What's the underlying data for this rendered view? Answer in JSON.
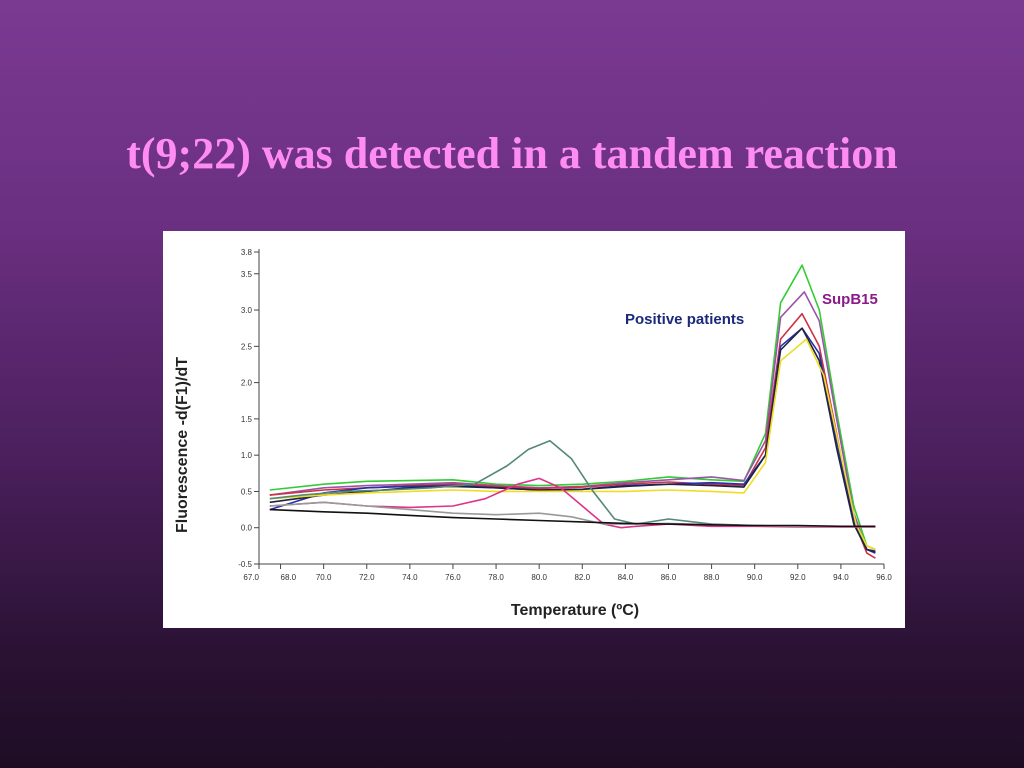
{
  "slide": {
    "title": "t(9;22) was detected in a tandem reaction"
  },
  "chart_data": {
    "type": "line",
    "xlabel": "Temperature (ºC)",
    "ylabel": "Fluorescence -d(F1)/dT",
    "xlim": [
      67.0,
      96.0
    ],
    "ylim": [
      -0.5,
      3.8
    ],
    "x_ticks": [
      "67.0",
      "68.0",
      "70.0",
      "72.0",
      "74.0",
      "76.0",
      "78.0",
      "80.0",
      "82.0",
      "84.0",
      "86.0",
      "88.0",
      "90.0",
      "92.0",
      "94.0",
      "96.0"
    ],
    "y_ticks": [
      "-0.5",
      "0.0",
      "0.5",
      "1.0",
      "1.5",
      "2.0",
      "2.5",
      "3.0",
      "3.5",
      "3.8"
    ],
    "grid": false,
    "annotations": [
      {
        "text": "SupB15",
        "color": "#8b1a8b"
      },
      {
        "text": "Positive patients",
        "color": "#1a2a7a"
      }
    ],
    "series": [
      {
        "color": "#33cc33",
        "x": [
          67.5,
          70,
          72,
          74,
          76,
          78,
          80,
          82,
          84,
          86,
          88,
          89.5,
          90.5,
          91.2,
          92.2,
          93,
          93.8,
          94.6,
          95.2,
          95.6
        ],
        "y": [
          0.52,
          0.6,
          0.64,
          0.65,
          0.66,
          0.6,
          0.58,
          0.6,
          0.64,
          0.7,
          0.66,
          0.64,
          1.3,
          3.1,
          3.62,
          3.0,
          1.6,
          0.3,
          -0.25,
          -0.3
        ]
      },
      {
        "color": "#9955aa",
        "x": [
          67.5,
          70,
          72,
          74,
          76,
          78,
          80,
          82,
          84,
          86,
          88,
          89.5,
          90.5,
          91.2,
          92.3,
          93,
          93.8,
          94.6,
          95.2,
          95.6
        ],
        "y": [
          0.45,
          0.55,
          0.58,
          0.6,
          0.62,
          0.58,
          0.55,
          0.57,
          0.62,
          0.66,
          0.7,
          0.65,
          1.2,
          2.9,
          3.25,
          2.85,
          1.5,
          0.2,
          -0.3,
          -0.32
        ]
      },
      {
        "color": "#cc3344",
        "x": [
          67.5,
          70,
          72,
          74,
          76,
          78,
          80,
          82,
          84,
          86,
          88,
          89.5,
          90.5,
          91.2,
          92.2,
          93,
          93.8,
          94.6,
          95.2,
          95.6
        ],
        "y": [
          0.45,
          0.52,
          0.55,
          0.58,
          0.6,
          0.57,
          0.54,
          0.56,
          0.6,
          0.63,
          0.6,
          0.58,
          1.1,
          2.6,
          2.95,
          2.5,
          1.3,
          0.1,
          -0.35,
          -0.42
        ]
      },
      {
        "color": "#2233aa",
        "x": [
          67.5,
          70,
          72,
          74,
          76,
          78,
          80,
          82,
          84,
          86,
          88,
          89.5,
          90.5,
          91.2,
          92.2,
          93,
          93.8,
          94.6,
          95.2,
          95.6
        ],
        "y": [
          0.25,
          0.48,
          0.55,
          0.57,
          0.58,
          0.55,
          0.52,
          0.53,
          0.58,
          0.6,
          0.62,
          0.6,
          1.0,
          2.5,
          2.75,
          2.4,
          1.2,
          0.1,
          -0.3,
          -0.35
        ]
      },
      {
        "color": "#222244",
        "x": [
          67.5,
          70,
          72,
          74,
          76,
          78,
          80,
          82,
          84,
          86,
          88,
          89.5,
          90.5,
          91.2,
          92.2,
          93,
          93.8,
          94.6,
          95.2,
          95.6
        ],
        "y": [
          0.35,
          0.45,
          0.5,
          0.55,
          0.57,
          0.55,
          0.52,
          0.53,
          0.57,
          0.6,
          0.58,
          0.56,
          1.0,
          2.45,
          2.75,
          2.3,
          1.1,
          0.05,
          -0.3,
          -0.33
        ]
      },
      {
        "color": "#eedd22",
        "x": [
          67.5,
          70,
          72,
          74,
          76,
          78,
          80,
          82,
          84,
          86,
          88,
          89.5,
          90.5,
          91.2,
          92.4,
          93.2,
          94,
          94.7,
          95.2,
          95.6
        ],
        "y": [
          0.4,
          0.45,
          0.48,
          0.5,
          0.52,
          0.5,
          0.5,
          0.5,
          0.5,
          0.52,
          0.5,
          0.48,
          0.9,
          2.3,
          2.6,
          2.1,
          1.0,
          0.05,
          -0.25,
          -0.3
        ]
      },
      {
        "color": "#558877",
        "x": [
          67.5,
          69,
          71,
          73,
          75,
          77,
          78.5,
          79.5,
          80.5,
          81.5,
          82.5,
          83.5,
          84.5,
          86,
          88,
          90,
          92,
          94,
          95.6
        ],
        "y": [
          0.4,
          0.45,
          0.5,
          0.52,
          0.55,
          0.6,
          0.85,
          1.08,
          1.2,
          0.95,
          0.5,
          0.12,
          0.05,
          0.12,
          0.05,
          0.03,
          0.02,
          0.02,
          0.02
        ]
      },
      {
        "color": "#dd3388",
        "x": [
          67.5,
          70,
          72,
          74,
          76,
          77.5,
          79,
          80,
          81,
          82,
          83,
          83.8,
          84.5,
          86,
          88,
          90,
          92,
          94,
          95.6
        ],
        "y": [
          0.3,
          0.35,
          0.3,
          0.28,
          0.3,
          0.4,
          0.6,
          0.68,
          0.55,
          0.3,
          0.05,
          0.0,
          0.02,
          0.05,
          0.02,
          0.02,
          0.01,
          0.01,
          0.01
        ]
      },
      {
        "color": "#999999",
        "x": [
          67.5,
          70,
          72,
          74,
          76,
          78,
          80,
          81.5,
          83,
          84,
          86,
          88,
          90,
          92,
          94,
          95.6
        ],
        "y": [
          0.3,
          0.35,
          0.3,
          0.25,
          0.2,
          0.18,
          0.2,
          0.15,
          0.05,
          0.05,
          0.06,
          0.04,
          0.03,
          0.02,
          0.02,
          0.02
        ]
      },
      {
        "color": "#111111",
        "x": [
          67.5,
          70,
          72,
          74,
          76,
          78,
          80,
          82,
          84,
          86,
          88,
          90,
          92,
          94,
          95.6
        ],
        "y": [
          0.25,
          0.22,
          0.2,
          0.17,
          0.14,
          0.12,
          0.1,
          0.08,
          0.06,
          0.05,
          0.04,
          0.03,
          0.03,
          0.02,
          0.02
        ]
      }
    ]
  }
}
